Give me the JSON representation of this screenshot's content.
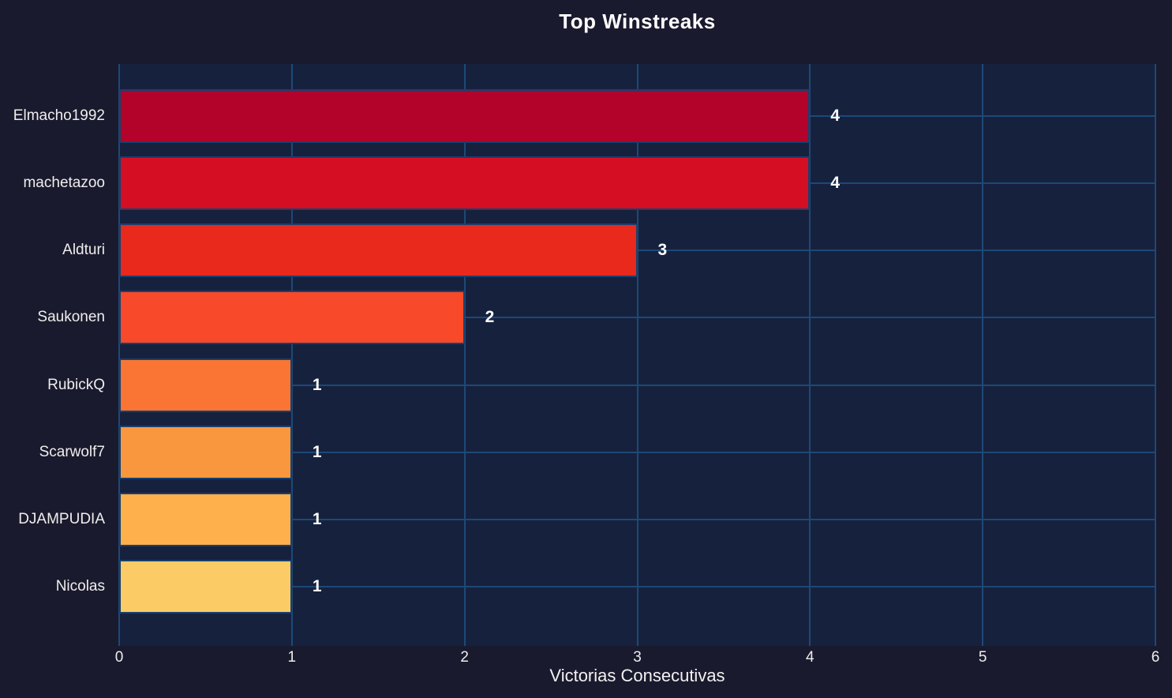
{
  "chart_data": {
    "type": "bar",
    "orientation": "horizontal",
    "title": "Top Winstreaks",
    "xlabel": "Victorias Consecutivas",
    "ylabel": "",
    "categories": [
      "Elmacho1992",
      "machetazoo",
      "Aldturi",
      "Saukonen",
      "RubickQ",
      "Scarwolf7",
      "DJAMPUDIA",
      "Nicolas"
    ],
    "values": [
      4,
      4,
      3,
      2,
      1,
      1,
      1,
      1
    ],
    "value_labels": [
      "4",
      "4",
      "3",
      "2",
      "1",
      "1",
      "1",
      "1"
    ],
    "bar_colors": [
      "#b3032b",
      "#d60e24",
      "#e8291c",
      "#f84a2a",
      "#fa7534",
      "#f9973f",
      "#fdb04c",
      "#fbcb66"
    ],
    "x_ticks": [
      "0",
      "1",
      "2",
      "3",
      "4",
      "5",
      "6"
    ],
    "xlim": [
      0,
      6
    ],
    "grid": "on",
    "legend": "none"
  },
  "colors": {
    "background": "#1a1a2e",
    "plot_background": "#16213e",
    "grid": "#1d4976",
    "bar_edge": "#19406e",
    "title_text": "#ffffff",
    "tick_text": "#eeeeee",
    "value_text": "#ffffff"
  }
}
